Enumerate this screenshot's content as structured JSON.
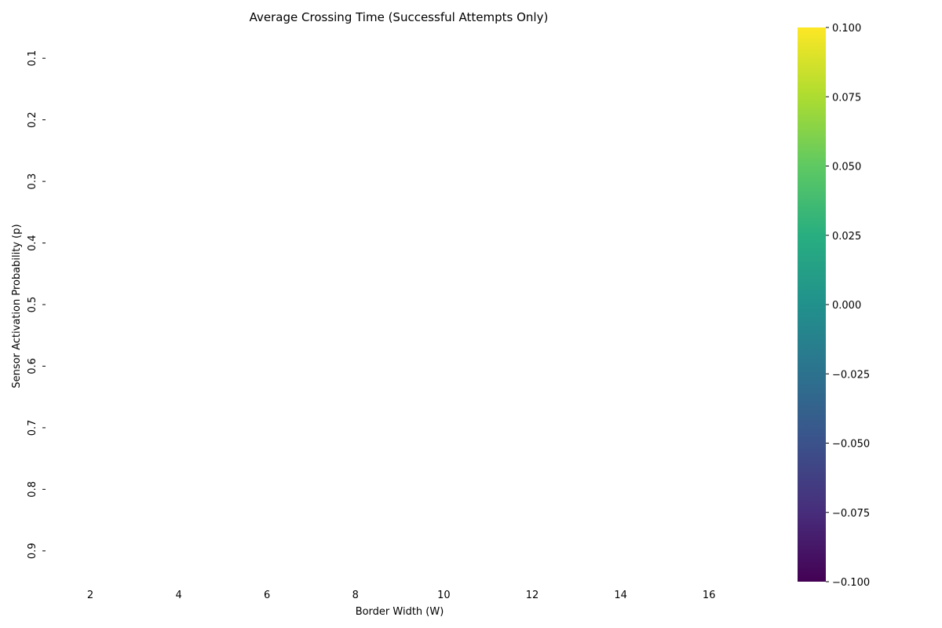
{
  "chart_data": {
    "type": "heatmap",
    "title": "Average Crossing Time (Successful Attempts Only)",
    "xlabel": "Border Width (W)",
    "ylabel": "Sensor Activation Probability (p)",
    "x_ticks": [
      "2",
      "4",
      "6",
      "8",
      "10",
      "12",
      "14",
      "16"
    ],
    "y_ticks": [
      "0.1",
      "0.2",
      "0.3",
      "0.4",
      "0.5",
      "0.6",
      "0.7",
      "0.8",
      "0.9"
    ],
    "values": [],
    "colormap": "viridis",
    "colorbar": {
      "range": [
        -0.1,
        0.1
      ],
      "ticks": [
        "0.100",
        "0.075",
        "0.050",
        "0.025",
        "0.000",
        "−0.025",
        "−0.050",
        "−0.075",
        "−0.100"
      ]
    },
    "grid": false
  }
}
